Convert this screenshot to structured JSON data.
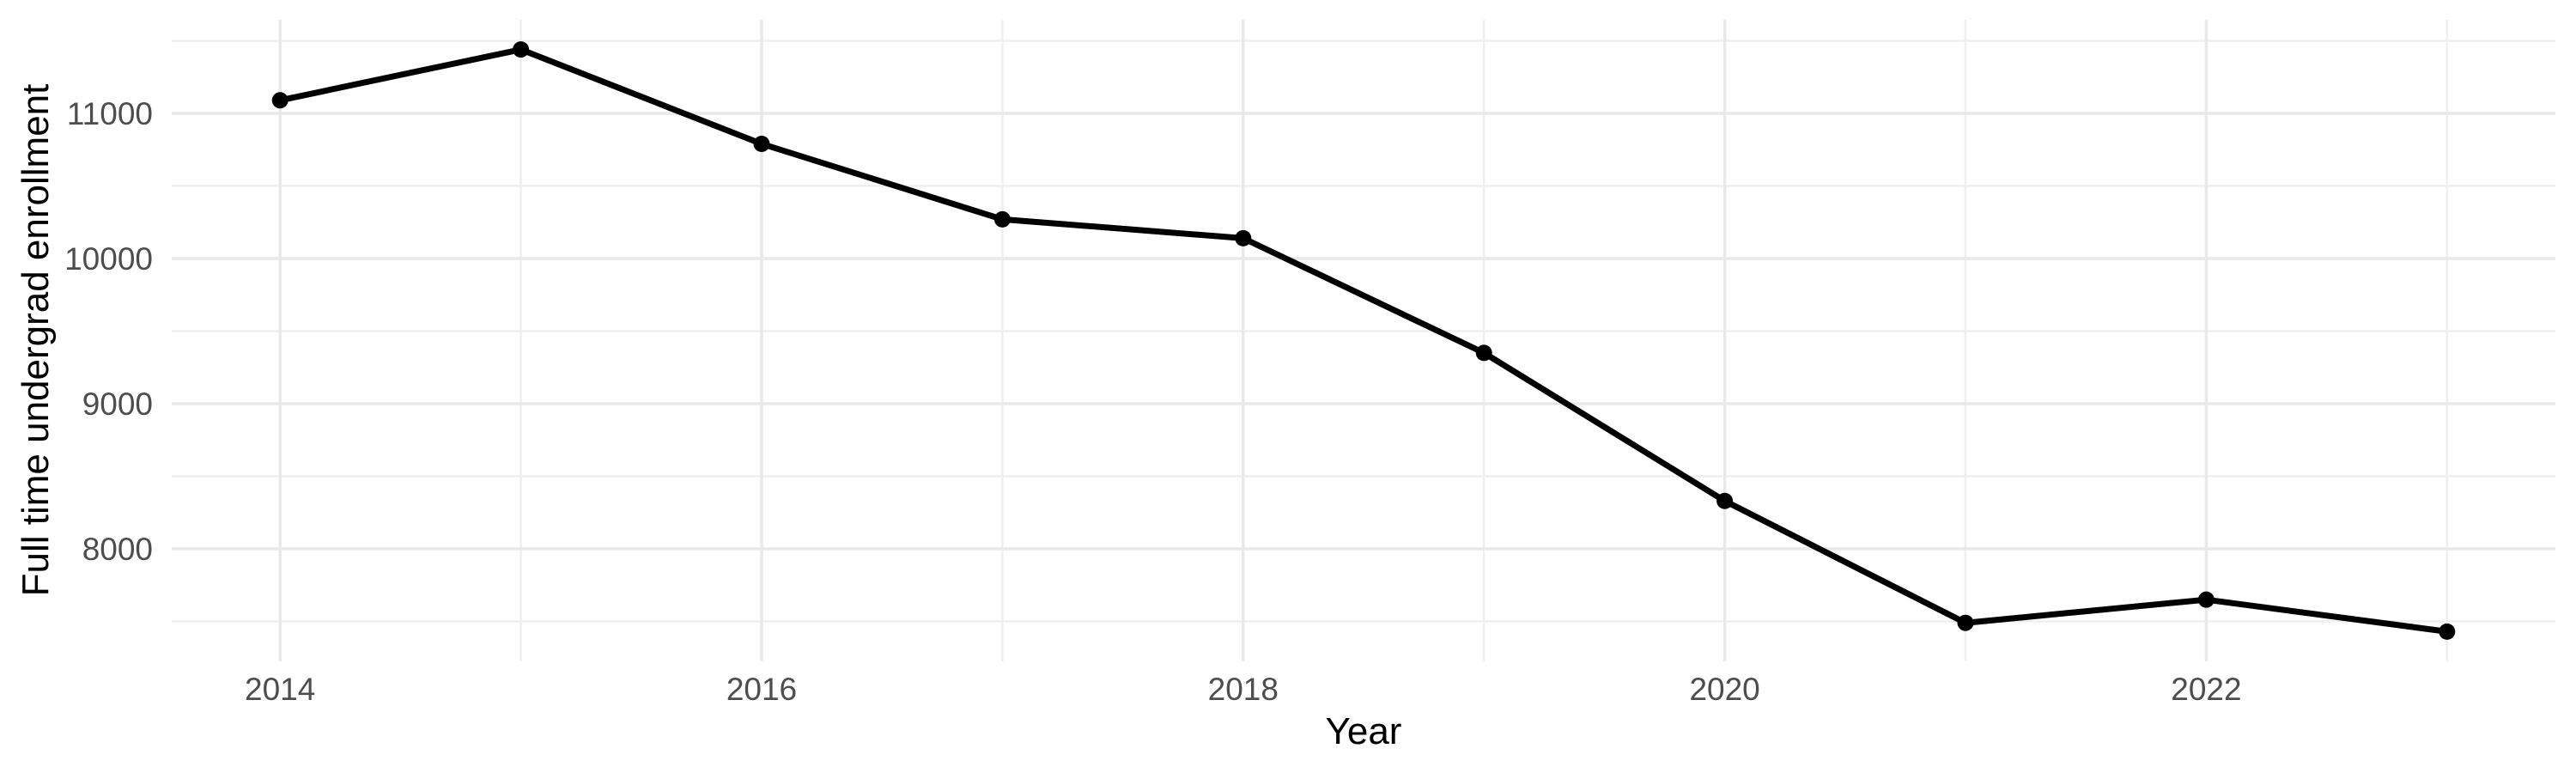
{
  "figure": {
    "background": "#FFFFFF"
  },
  "chart_data": {
    "type": "line",
    "title": "",
    "xlabel": "Year",
    "ylabel": "Full time undergrad enrollment",
    "series": [
      {
        "name": "Full time undergrad enrollment",
        "x": [
          2014,
          2015,
          2016,
          2017,
          2018,
          2019,
          2020,
          2021,
          2022,
          2023
        ],
        "values": [
          11090,
          11440,
          10790,
          10270,
          10140,
          9350,
          8330,
          7490,
          7650,
          7430
        ]
      }
    ],
    "xlim": [
      2013.55,
      2023.45
    ],
    "ylim": [
      7225,
      11645
    ],
    "x_major_ticks": [
      2014,
      2016,
      2018,
      2020,
      2022
    ],
    "x_minor_gridlines": [
      2015,
      2017,
      2019,
      2021,
      2023
    ],
    "y_major_ticks": [
      8000,
      9000,
      10000,
      11000
    ],
    "y_minor_gridlines": [
      7500,
      8500,
      9500,
      10500,
      11500
    ],
    "grid": "major-and-minor",
    "legend": "none",
    "marker": "filled-circle",
    "colors": {
      "line": "#000000",
      "point": "#000000",
      "grid_major": "#E9E9E9",
      "grid_minor": "#EFEFEF",
      "tick_label": "#4D4D4D",
      "axis_title": "#000000",
      "background": "#FFFFFF"
    }
  }
}
